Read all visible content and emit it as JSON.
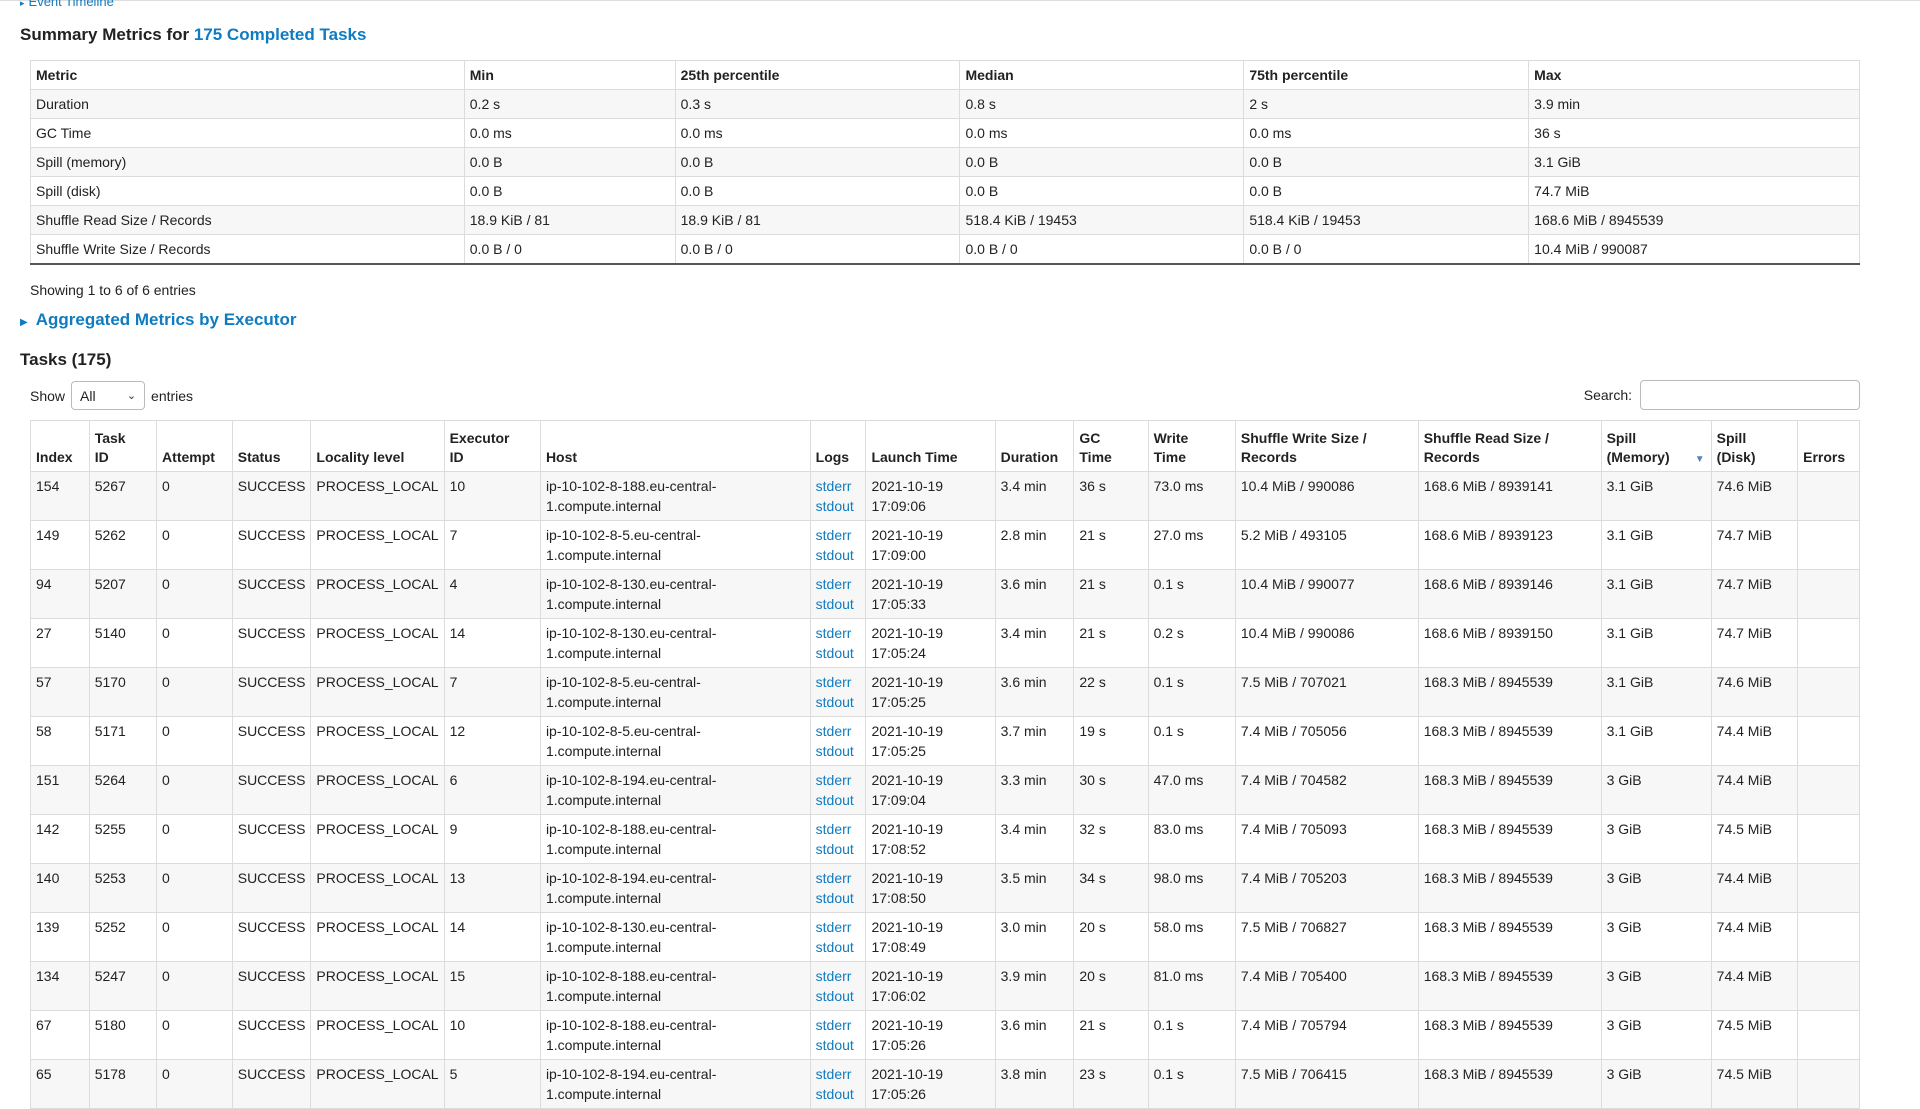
{
  "event_timeline": "Event Timeline",
  "summary": {
    "heading_prefix": "Summary Metrics for ",
    "heading_link": "175 Completed Tasks",
    "columns": [
      "Metric",
      "Min",
      "25th percentile",
      "Median",
      "75th percentile",
      "Max"
    ],
    "rows": [
      [
        "Duration",
        "0.2 s",
        "0.3 s",
        "0.8 s",
        "2 s",
        "3.9 min"
      ],
      [
        "GC Time",
        "0.0 ms",
        "0.0 ms",
        "0.0 ms",
        "0.0 ms",
        "36 s"
      ],
      [
        "Spill (memory)",
        "0.0 B",
        "0.0 B",
        "0.0 B",
        "0.0 B",
        "3.1 GiB"
      ],
      [
        "Spill (disk)",
        "0.0 B",
        "0.0 B",
        "0.0 B",
        "0.0 B",
        "74.7 MiB"
      ],
      [
        "Shuffle Read Size / Records",
        "18.9 KiB / 81",
        "18.9 KiB / 81",
        "518.4 KiB / 19453",
        "518.4 KiB / 19453",
        "168.6 MiB / 8945539"
      ],
      [
        "Shuffle Write Size / Records",
        "0.0 B / 0",
        "0.0 B / 0",
        "0.0 B / 0",
        "0.0 B / 0",
        "10.4 MiB / 990087"
      ]
    ],
    "showing": "Showing 1 to 6 of 6 entries"
  },
  "aggregated": "Aggregated Metrics by Executor",
  "tasks": {
    "heading": "Tasks (175)",
    "show_label": "Show",
    "show_value": "All",
    "entries_label": "entries",
    "search_label": "Search:",
    "search_value": "",
    "columns": [
      [
        "Index"
      ],
      [
        "Task",
        "ID"
      ],
      [
        "Attempt"
      ],
      [
        "Status"
      ],
      [
        "Locality level"
      ],
      [
        "Executor",
        "ID"
      ],
      [
        "Host"
      ],
      [
        "Logs"
      ],
      [
        "Launch Time"
      ],
      [
        "Duration"
      ],
      [
        "GC",
        "Time"
      ],
      [
        "Write",
        "Time"
      ],
      [
        "Shuffle Write Size /",
        "Records"
      ],
      [
        "Shuffle Read Size /",
        "Records"
      ],
      [
        "Spill",
        "(Memory)"
      ],
      [
        "Spill",
        "(Disk)"
      ],
      [
        "Errors"
      ]
    ],
    "log_links": [
      "stderr",
      "stdout"
    ],
    "rows": [
      [
        "154",
        "5267",
        "0",
        "SUCCESS",
        "PROCESS_LOCAL",
        "10",
        [
          "ip-10-102-8-188.eu-central-",
          "1.compute.internal"
        ],
        [
          "2021-10-19",
          "17:09:06"
        ],
        "3.4 min",
        "36 s",
        "73.0 ms",
        "10.4 MiB / 990086",
        "168.6 MiB / 8939141",
        "3.1 GiB",
        "74.6 MiB",
        ""
      ],
      [
        "149",
        "5262",
        "0",
        "SUCCESS",
        "PROCESS_LOCAL",
        "7",
        [
          "ip-10-102-8-5.eu-central-",
          "1.compute.internal"
        ],
        [
          "2021-10-19",
          "17:09:00"
        ],
        "2.8 min",
        "21 s",
        "27.0 ms",
        "5.2 MiB / 493105",
        "168.6 MiB / 8939123",
        "3.1 GiB",
        "74.7 MiB",
        ""
      ],
      [
        "94",
        "5207",
        "0",
        "SUCCESS",
        "PROCESS_LOCAL",
        "4",
        [
          "ip-10-102-8-130.eu-central-",
          "1.compute.internal"
        ],
        [
          "2021-10-19",
          "17:05:33"
        ],
        "3.6 min",
        "21 s",
        "0.1 s",
        "10.4 MiB / 990077",
        "168.6 MiB / 8939146",
        "3.1 GiB",
        "74.7 MiB",
        ""
      ],
      [
        "27",
        "5140",
        "0",
        "SUCCESS",
        "PROCESS_LOCAL",
        "14",
        [
          "ip-10-102-8-130.eu-central-",
          "1.compute.internal"
        ],
        [
          "2021-10-19",
          "17:05:24"
        ],
        "3.4 min",
        "21 s",
        "0.2 s",
        "10.4 MiB / 990086",
        "168.6 MiB / 8939150",
        "3.1 GiB",
        "74.7 MiB",
        ""
      ],
      [
        "57",
        "5170",
        "0",
        "SUCCESS",
        "PROCESS_LOCAL",
        "7",
        [
          "ip-10-102-8-5.eu-central-",
          "1.compute.internal"
        ],
        [
          "2021-10-19",
          "17:05:25"
        ],
        "3.6 min",
        "22 s",
        "0.1 s",
        "7.5 MiB / 707021",
        "168.3 MiB / 8945539",
        "3.1 GiB",
        "74.6 MiB",
        ""
      ],
      [
        "58",
        "5171",
        "0",
        "SUCCESS",
        "PROCESS_LOCAL",
        "12",
        [
          "ip-10-102-8-5.eu-central-",
          "1.compute.internal"
        ],
        [
          "2021-10-19",
          "17:05:25"
        ],
        "3.7 min",
        "19 s",
        "0.1 s",
        "7.4 MiB / 705056",
        "168.3 MiB / 8945539",
        "3.1 GiB",
        "74.4 MiB",
        ""
      ],
      [
        "151",
        "5264",
        "0",
        "SUCCESS",
        "PROCESS_LOCAL",
        "6",
        [
          "ip-10-102-8-194.eu-central-",
          "1.compute.internal"
        ],
        [
          "2021-10-19",
          "17:09:04"
        ],
        "3.3 min",
        "30 s",
        "47.0 ms",
        "7.4 MiB / 704582",
        "168.3 MiB / 8945539",
        "3 GiB",
        "74.4 MiB",
        ""
      ],
      [
        "142",
        "5255",
        "0",
        "SUCCESS",
        "PROCESS_LOCAL",
        "9",
        [
          "ip-10-102-8-188.eu-central-",
          "1.compute.internal"
        ],
        [
          "2021-10-19",
          "17:08:52"
        ],
        "3.4 min",
        "32 s",
        "83.0 ms",
        "7.4 MiB / 705093",
        "168.3 MiB / 8945539",
        "3 GiB",
        "74.5 MiB",
        ""
      ],
      [
        "140",
        "5253",
        "0",
        "SUCCESS",
        "PROCESS_LOCAL",
        "13",
        [
          "ip-10-102-8-194.eu-central-",
          "1.compute.internal"
        ],
        [
          "2021-10-19",
          "17:08:50"
        ],
        "3.5 min",
        "34 s",
        "98.0 ms",
        "7.4 MiB / 705203",
        "168.3 MiB / 8945539",
        "3 GiB",
        "74.4 MiB",
        ""
      ],
      [
        "139",
        "5252",
        "0",
        "SUCCESS",
        "PROCESS_LOCAL",
        "14",
        [
          "ip-10-102-8-130.eu-central-",
          "1.compute.internal"
        ],
        [
          "2021-10-19",
          "17:08:49"
        ],
        "3.0 min",
        "20 s",
        "58.0 ms",
        "7.5 MiB / 706827",
        "168.3 MiB / 8945539",
        "3 GiB",
        "74.4 MiB",
        ""
      ],
      [
        "134",
        "5247",
        "0",
        "SUCCESS",
        "PROCESS_LOCAL",
        "15",
        [
          "ip-10-102-8-188.eu-central-",
          "1.compute.internal"
        ],
        [
          "2021-10-19",
          "17:06:02"
        ],
        "3.9 min",
        "20 s",
        "81.0 ms",
        "7.4 MiB / 705400",
        "168.3 MiB / 8945539",
        "3 GiB",
        "74.4 MiB",
        ""
      ],
      [
        "67",
        "5180",
        "0",
        "SUCCESS",
        "PROCESS_LOCAL",
        "10",
        [
          "ip-10-102-8-188.eu-central-",
          "1.compute.internal"
        ],
        [
          "2021-10-19",
          "17:05:26"
        ],
        "3.6 min",
        "21 s",
        "0.1 s",
        "7.4 MiB / 705794",
        "168.3 MiB / 8945539",
        "3 GiB",
        "74.5 MiB",
        ""
      ],
      [
        "65",
        "5178",
        "0",
        "SUCCESS",
        "PROCESS_LOCAL",
        "5",
        [
          "ip-10-102-8-194.eu-central-",
          "1.compute.internal"
        ],
        [
          "2021-10-19",
          "17:05:26"
        ],
        "3.8 min",
        "23 s",
        "0.1 s",
        "7.5 MiB / 706415",
        "168.3 MiB / 8945539",
        "3 GiB",
        "74.5 MiB",
        ""
      ]
    ]
  }
}
